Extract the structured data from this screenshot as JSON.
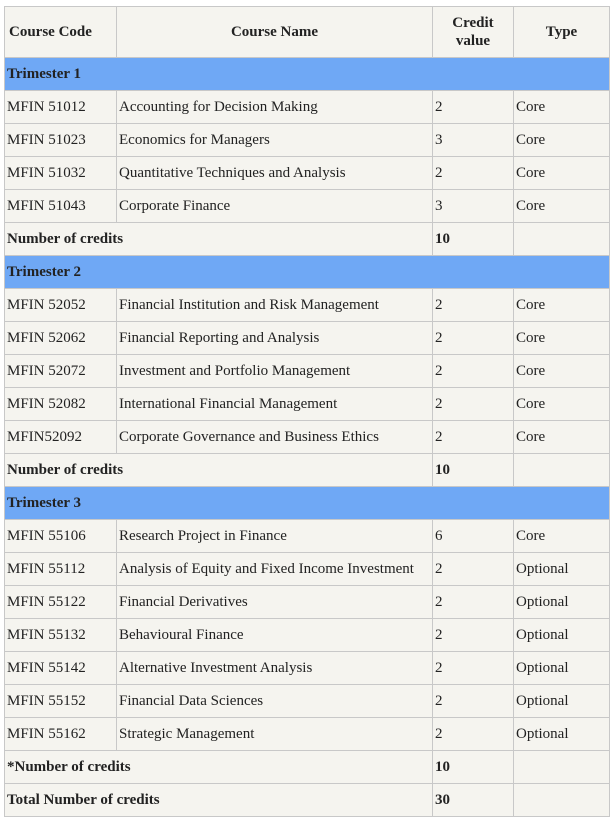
{
  "header": {
    "columns": [
      "Course Code",
      "Course Name",
      "Credit value",
      "Type"
    ]
  },
  "sections": [
    {
      "title": "Trimester 1",
      "rows": [
        [
          "MFIN 51012",
          "Accounting for Decision Making",
          2,
          "Core"
        ],
        [
          "MFIN 51023",
          "Economics for Managers",
          3,
          "Core"
        ],
        [
          "MFIN 51032",
          "Quantitative Techniques and Analysis",
          2,
          "Core"
        ],
        [
          "MFIN 51043",
          "Corporate Finance",
          3,
          "Core"
        ]
      ],
      "subtotal": {
        "label": "Number of credits",
        "value": 10
      }
    },
    {
      "title": "Trimester 2",
      "rows": [
        [
          "MFIN 52052",
          "Financial Institution and Risk Management",
          2,
          "Core"
        ],
        [
          "MFIN 52062",
          "Financial Reporting and Analysis",
          2,
          "Core"
        ],
        [
          "MFIN 52072",
          "Investment and Portfolio Management",
          2,
          "Core"
        ],
        [
          "MFIN 52082",
          "International Financial Management",
          2,
          "Core"
        ],
        [
          "MFIN52092",
          "Corporate Governance and Business Ethics",
          2,
          "Core"
        ]
      ],
      "subtotal": {
        "label": "Number of credits",
        "value": 10
      }
    },
    {
      "title": "Trimester 3",
      "rows": [
        [
          "MFIN 55106",
          "Research Project in Finance",
          6,
          "Core"
        ],
        [
          "MFIN 55112",
          "Analysis of Equity and Fixed Income Investment",
          2,
          "Optional"
        ],
        [
          "MFIN 55122",
          "Financial Derivatives",
          2,
          "Optional"
        ],
        [
          "MFIN 55132",
          "Behavioural Finance",
          2,
          "Optional"
        ],
        [
          "MFIN 55142",
          "Alternative Investment Analysis",
          2,
          "Optional"
        ],
        [
          "MFIN 55152",
          "Financial Data Sciences",
          2,
          "Optional"
        ],
        [
          "MFIN 55162",
          "Strategic Management",
          2,
          "Optional"
        ]
      ],
      "subtotal": {
        "label": "*Number of credits",
        "value": 10
      }
    }
  ],
  "total": {
    "label": "Total Number of credits",
    "value": 30
  }
}
